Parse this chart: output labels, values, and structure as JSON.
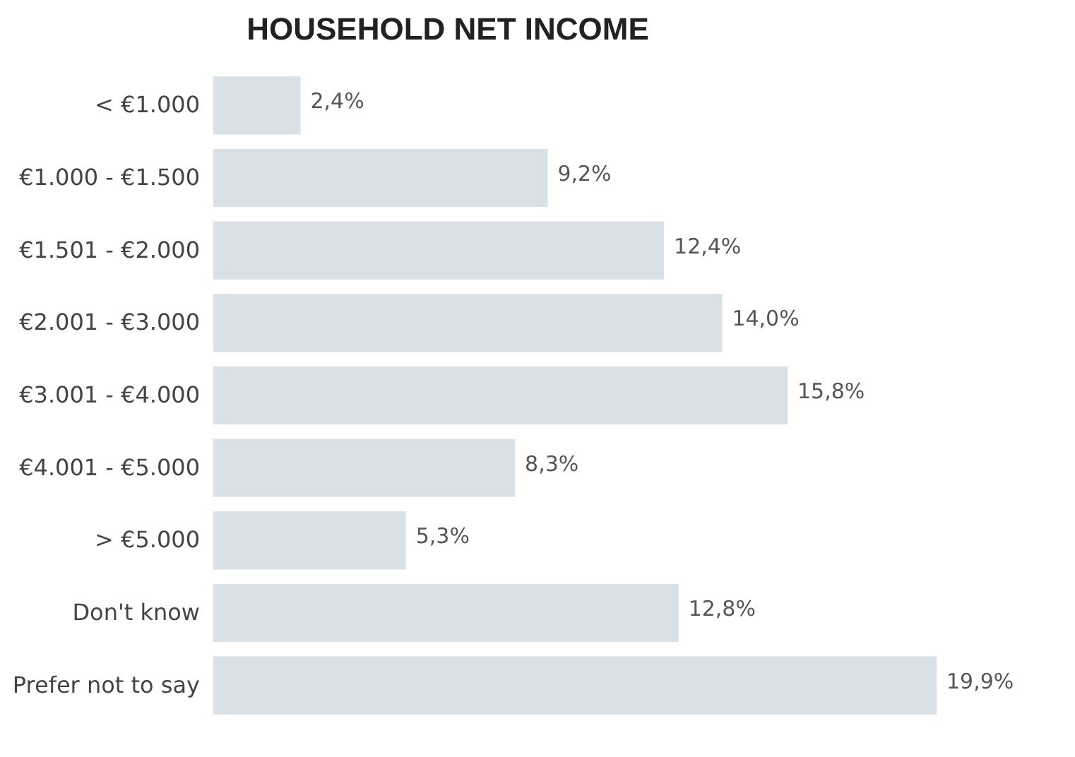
{
  "chart_data": {
    "type": "bar",
    "orientation": "horizontal",
    "title": "HOUSEHOLD NET INCOME",
    "categories": [
      "< €1.000",
      "€1.000 - €1.500",
      "€1.501 - €2.000",
      "€2.001 - €3.000",
      "€3.001 - €4.000",
      "€4.001 - €5.000",
      "> €5.000",
      "Don't know",
      "Prefer not to say"
    ],
    "values": [
      2.4,
      9.2,
      12.4,
      14.0,
      15.8,
      8.3,
      5.3,
      12.8,
      19.9
    ],
    "value_labels": [
      "2,4%",
      "9,2%",
      "12,4%",
      "14,0%",
      "15,8%",
      "8,3%",
      "5,3%",
      "12,8%",
      "19,9%"
    ],
    "color": "#d9e1e7",
    "tick_labels": "y"
  }
}
